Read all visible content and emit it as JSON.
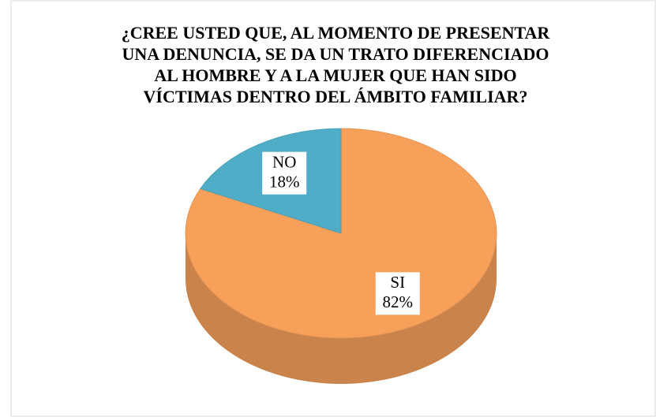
{
  "chart_data": {
    "type": "pie",
    "title": [
      "¿CREE USTED QUE, AL MOMENTO DE PRESENTAR",
      "UNA DENUNCIA, SE DA UN TRATO DIFERENCIADO",
      "AL HOMBRE Y A LA  MUJER QUE HAN SIDO",
      "VÍCTIMAS DENTRO DEL ÁMBITO FAMILIAR?"
    ],
    "categories": [
      "SI",
      "NO"
    ],
    "values": [
      82,
      18
    ],
    "value_labels": [
      "82%",
      "18%"
    ],
    "colors": [
      "#f6a05a",
      "#4fadc7"
    ]
  }
}
